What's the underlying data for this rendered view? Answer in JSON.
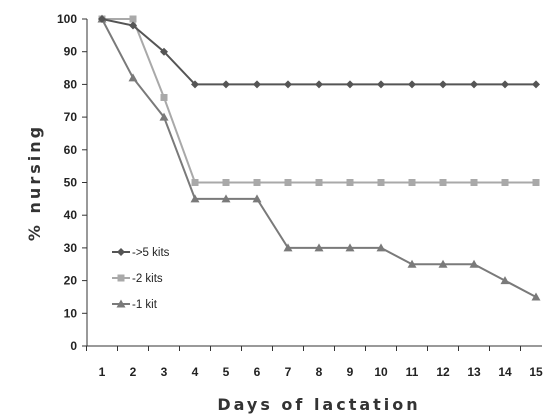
{
  "chart_data": {
    "type": "line",
    "xlabel": "Days of lactation",
    "ylabel": "% nursing",
    "x": [
      1,
      2,
      3,
      4,
      5,
      6,
      7,
      8,
      9,
      10,
      11,
      12,
      13,
      14,
      15
    ],
    "xlim": [
      1,
      15
    ],
    "ylim": [
      0,
      100
    ],
    "yticks": [
      0,
      10,
      20,
      30,
      40,
      50,
      60,
      70,
      80,
      90,
      100
    ],
    "grid": false,
    "legend_position": "lower-left",
    "series": [
      {
        "name": "->5 kits",
        "color": "#555555",
        "marker": "diamond",
        "values": [
          100,
          98,
          90,
          80,
          80,
          80,
          80,
          80,
          80,
          80,
          80,
          80,
          80,
          80,
          80
        ]
      },
      {
        "name": "-2 kits",
        "color": "#a9a9a9",
        "marker": "square",
        "values": [
          100,
          100,
          76,
          50,
          50,
          50,
          50,
          50,
          50,
          50,
          50,
          50,
          50,
          50,
          50
        ]
      },
      {
        "name": "-1 kit",
        "color": "#7a7a7a",
        "marker": "triangle",
        "values": [
          100,
          82,
          70,
          45,
          45,
          45,
          30,
          30,
          30,
          30,
          25,
          25,
          25,
          20,
          15
        ]
      }
    ]
  }
}
